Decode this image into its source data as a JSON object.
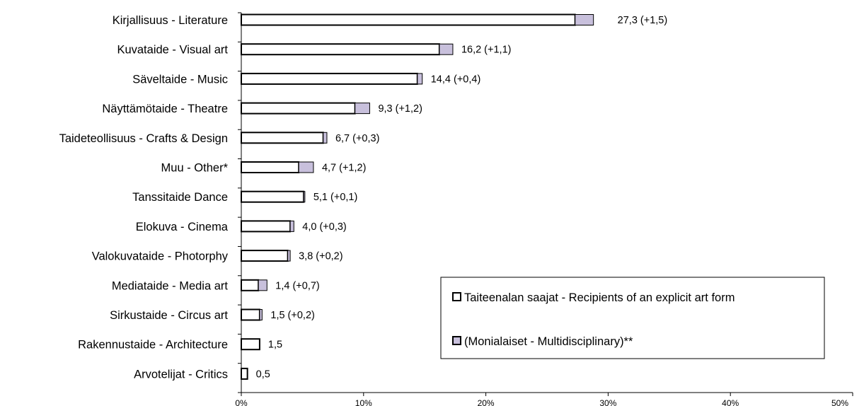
{
  "chart_data": {
    "type": "bar",
    "orientation": "horizontal",
    "stacked": true,
    "categories": [
      "Kirjallisuus - Literature",
      "Kuvataide - Visual art",
      "Säveltaide - Music",
      "Näyttämötaide - Theatre",
      "Taideteollisuus - Crafts & Design",
      "Muu - Other*",
      "Tanssitaide Dance",
      "Elokuva - Cinema",
      "Valokuvataide - Photorphy",
      "Mediataide - Media art",
      "Sirkustaide - Circus art",
      "Rakennustaide - Architecture",
      "Arvotelijat - Critics"
    ],
    "series": [
      {
        "name": "Taiteenalan saajat - Recipients of an explicit art form",
        "color": "#ffffff",
        "values": [
          27.3,
          16.2,
          14.4,
          9.3,
          6.7,
          4.7,
          5.1,
          4.0,
          3.8,
          1.4,
          1.5,
          1.5,
          0.5
        ]
      },
      {
        "name": "(Monialaiset - Multidisciplinary)**",
        "color": "#c8c0dc",
        "values": [
          1.5,
          1.1,
          0.4,
          1.2,
          0.3,
          1.2,
          0.1,
          0.3,
          0.2,
          0.7,
          0.2,
          0,
          0
        ]
      }
    ],
    "data_labels": [
      "27,3 (+1,5)",
      "16,2 (+1,1)",
      "14,4 (+0,4)",
      "9,3 (+1,2)",
      "6,7 (+0,3)",
      "4,7 (+1,2)",
      "5,1 (+0,1)",
      "4,0 (+0,3)",
      "3,8 (+0,2)",
      "1,4 (+0,7)",
      "1,5 (+0,2)",
      "1,5",
      "0,5"
    ],
    "x_ticks": [
      "0%",
      "10%",
      "20%",
      "30%",
      "40%",
      "50%"
    ],
    "xlim": [
      0,
      50
    ],
    "title": "",
    "xlabel": "",
    "ylabel": "",
    "grid": false,
    "legend_position": "bottom-right"
  }
}
